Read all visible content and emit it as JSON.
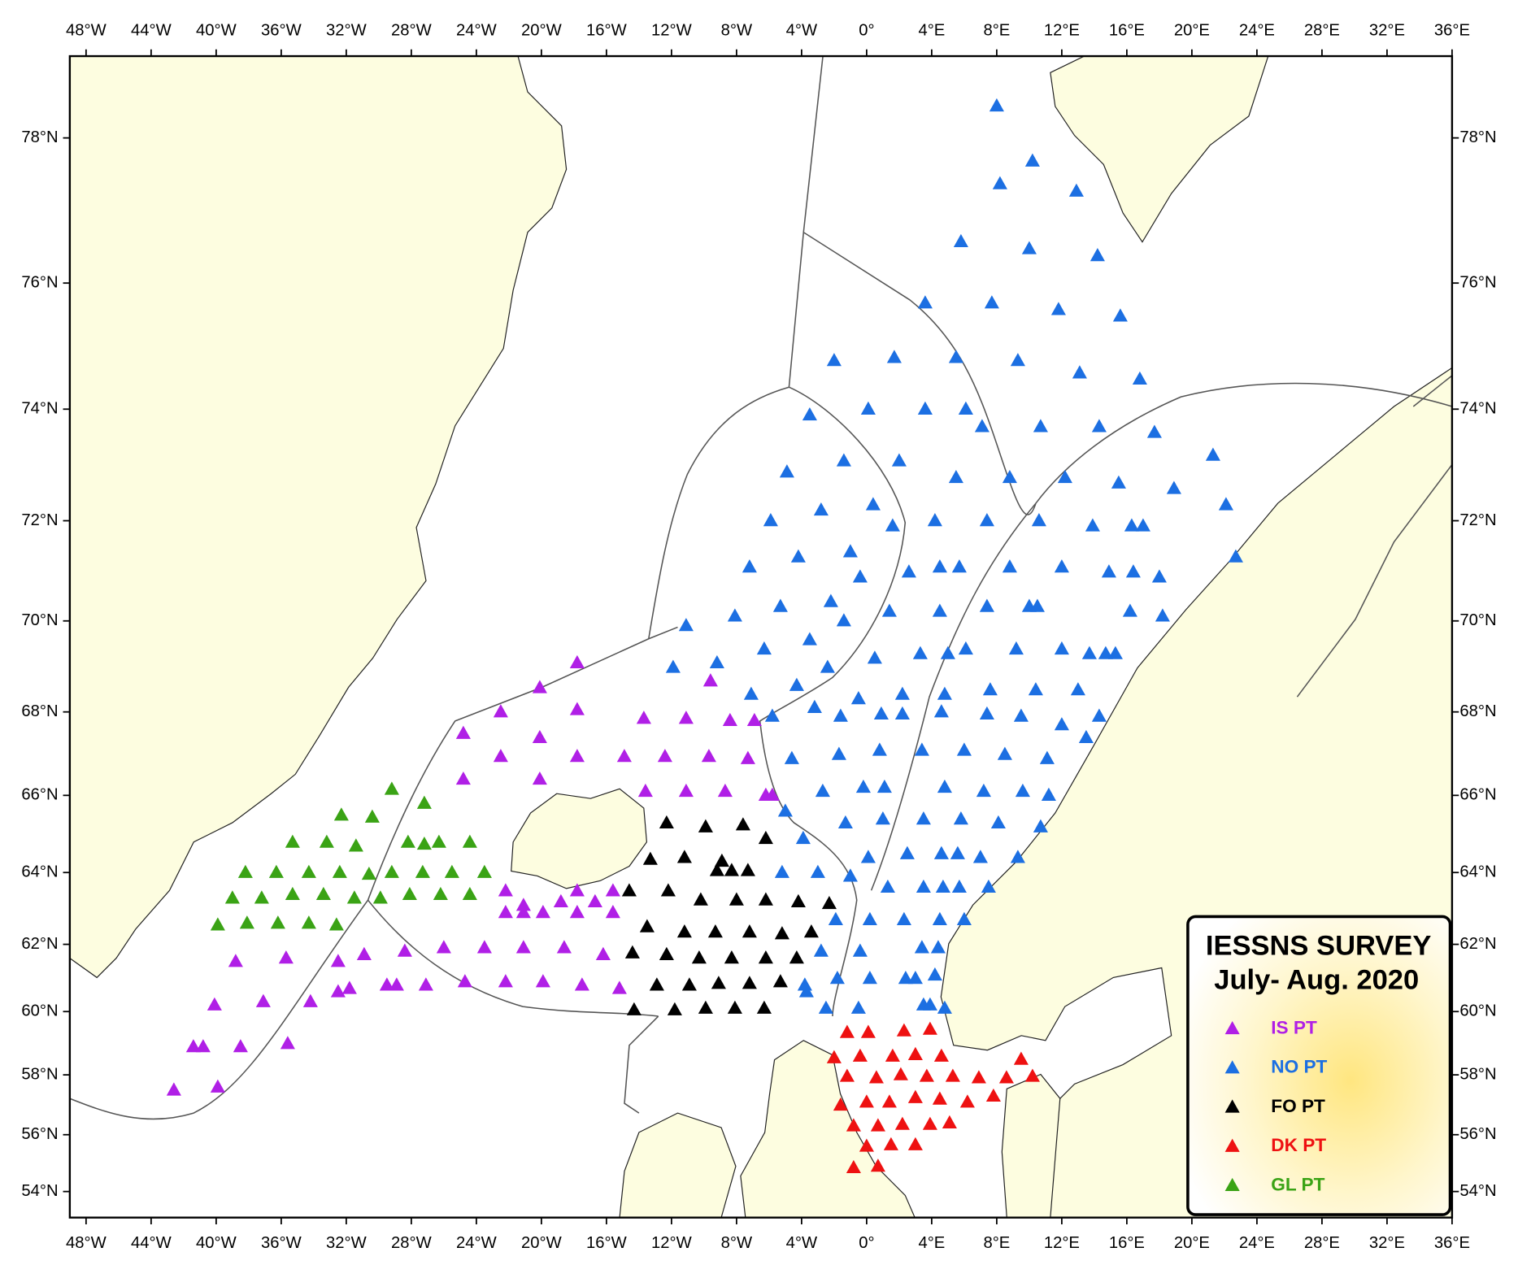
{
  "chart_data": {
    "type": "scatter",
    "projection": "mercator",
    "title": "IESSNS SURVEY",
    "subtitle": "July- Aug. 2020",
    "xlim": [
      -49,
      36
    ],
    "ylim": [
      53.05,
      79.0
    ],
    "xticks": [
      {
        "value": -48,
        "label": "48°W"
      },
      {
        "value": -44,
        "label": "44°W"
      },
      {
        "value": -40,
        "label": "40°W"
      },
      {
        "value": -36,
        "label": "36°W"
      },
      {
        "value": -32,
        "label": "32°W"
      },
      {
        "value": -28,
        "label": "28°W"
      },
      {
        "value": -24,
        "label": "24°W"
      },
      {
        "value": -20,
        "label": "20°W"
      },
      {
        "value": -16,
        "label": "16°W"
      },
      {
        "value": -12,
        "label": "12°W"
      },
      {
        "value": -8,
        "label": "8°W"
      },
      {
        "value": -4,
        "label": "4°W"
      },
      {
        "value": 0,
        "label": "0°"
      },
      {
        "value": 4,
        "label": "4°E"
      },
      {
        "value": 8,
        "label": "8°E"
      },
      {
        "value": 12,
        "label": "12°E"
      },
      {
        "value": 16,
        "label": "16°E"
      },
      {
        "value": 20,
        "label": "20°E"
      },
      {
        "value": 24,
        "label": "24°E"
      },
      {
        "value": 28,
        "label": "28°E"
      },
      {
        "value": 32,
        "label": "32°E"
      },
      {
        "value": 36,
        "label": "36°E"
      }
    ],
    "yticks": [
      {
        "value": 54,
        "label": "54°N"
      },
      {
        "value": 56,
        "label": "56°N"
      },
      {
        "value": 58,
        "label": "58°N"
      },
      {
        "value": 60,
        "label": "60°N"
      },
      {
        "value": 62,
        "label": "62°N"
      },
      {
        "value": 64,
        "label": "64°N"
      },
      {
        "value": 66,
        "label": "66°N"
      },
      {
        "value": 68,
        "label": "68°N"
      },
      {
        "value": 70,
        "label": "70°N"
      },
      {
        "value": 72,
        "label": "72°N"
      },
      {
        "value": 74,
        "label": "74°N"
      },
      {
        "value": 76,
        "label": "76°N"
      },
      {
        "value": 78,
        "label": "78°N"
      }
    ],
    "legend": "lower right",
    "series": [
      {
        "name": "IS PT",
        "color": "#b01fe6",
        "x": [
          -42.6,
          -39.9,
          -41.4,
          -40.8,
          -38.5,
          -35.6,
          -40.1,
          -37.1,
          -34.2,
          -32.5,
          -31.8,
          -29.5,
          -28.9,
          -27.1,
          -24.7,
          -22.2,
          -19.9,
          -17.5,
          -15.2,
          -38.8,
          -35.7,
          -32.5,
          -30.9,
          -28.4,
          -26.0,
          -23.5,
          -21.1,
          -18.6,
          -16.2,
          -22.2,
          -22.2,
          -21.1,
          -19.9,
          -21.1,
          -18.8,
          -17.8,
          -17.8,
          -16.7,
          -15.6,
          -15.6,
          -24.8,
          -24.8,
          -22.5,
          -22.5,
          -20.1,
          -20.1,
          -20.1,
          -17.8,
          -17.8,
          -17.8,
          -14.9,
          -13.7,
          -13.6,
          -12.4,
          -11.1,
          -11.1,
          -9.7,
          -9.6,
          -8.7,
          -8.4,
          -7.3,
          -6.9,
          -6.2,
          -5.8
        ],
        "values": [
          57.5,
          57.6,
          58.9,
          58.9,
          58.9,
          59.0,
          60.2,
          60.3,
          60.3,
          60.6,
          60.7,
          60.8,
          60.8,
          60.8,
          60.9,
          60.9,
          60.9,
          60.8,
          60.7,
          61.5,
          61.6,
          61.5,
          61.7,
          61.8,
          61.9,
          61.9,
          61.9,
          61.9,
          61.7,
          63.5,
          62.9,
          63.1,
          62.9,
          62.9,
          63.2,
          63.5,
          62.9,
          63.2,
          62.9,
          63.5,
          66.4,
          67.5,
          66.95,
          68.0,
          66.4,
          67.4,
          68.55,
          66.95,
          68.05,
          69.1,
          66.95,
          67.85,
          66.1,
          66.95,
          67.85,
          66.1,
          66.95,
          68.7,
          66.1,
          67.8,
          66.9,
          67.8,
          66.0,
          66.0
        ]
      },
      {
        "name": "NO PT",
        "color": "#1c6fe2",
        "x": [
          8.0,
          10.2,
          8.2,
          12.9,
          5.8,
          10.0,
          14.2,
          3.6,
          7.7,
          11.8,
          15.6,
          -2.0,
          1.7,
          5.5,
          9.3,
          13.1,
          16.8,
          -3.5,
          0.1,
          3.6,
          6.1,
          7.1,
          10.7,
          14.3,
          17.7,
          21.3,
          -4.9,
          -1.4,
          2.0,
          5.5,
          8.8,
          12.2,
          15.5,
          18.9,
          -5.9,
          -2.8,
          0.4,
          1.6,
          4.2,
          7.4,
          10.6,
          13.9,
          16.3,
          17.0,
          22.1,
          22.7,
          -7.2,
          -4.2,
          -1.0,
          2.6,
          -0.4,
          4.5,
          5.7,
          8.8,
          12.0,
          14.9,
          16.4,
          18.0,
          -11.1,
          -8.1,
          -5.3,
          -2.2,
          -1.4,
          1.4,
          4.5,
          7.4,
          10.0,
          10.5,
          16.2,
          18.2,
          -11.9,
          -9.2,
          -6.3,
          -3.5,
          -2.4,
          0.5,
          3.3,
          5.0,
          6.1,
          9.2,
          12.0,
          13.7,
          14.7,
          15.3,
          -7.1,
          -4.3,
          -0.5,
          2.2,
          4.8,
          7.6,
          10.4,
          13.0,
          -5.8,
          -3.2,
          -1.6,
          0.9,
          2.2,
          4.6,
          7.4,
          9.5,
          12.0,
          14.3,
          -4.6,
          -1.7,
          0.8,
          3.4,
          6.0,
          8.5,
          11.1,
          13.5,
          -2.7,
          -0.2,
          1.1,
          4.8,
          7.2,
          9.6,
          11.2,
          -5.0,
          -1.3,
          1.0,
          3.5,
          5.8,
          8.1,
          10.7,
          -3.9,
          0.1,
          2.5,
          4.6,
          5.6,
          7.0,
          9.3,
          -5.2,
          -3.0,
          -1.0,
          1.3,
          3.5,
          4.7,
          5.7,
          7.5,
          -1.9,
          0.2,
          2.3,
          4.5,
          6.0,
          -2.8,
          -0.4,
          3.4,
          4.4,
          -3.8,
          -1.8,
          0.2,
          2.4,
          3.0,
          4.2,
          -3.7,
          -2.5,
          -0.5,
          3.5,
          3.9,
          4.8
        ],
        "values": [
          78.4,
          77.7,
          77.4,
          77.3,
          76.6,
          76.5,
          76.4,
          75.7,
          75.7,
          75.6,
          75.5,
          74.8,
          74.85,
          74.85,
          74.8,
          74.6,
          74.5,
          73.9,
          74.0,
          74.0,
          74.0,
          73.7,
          73.7,
          73.7,
          73.6,
          73.2,
          72.9,
          73.1,
          73.1,
          72.8,
          72.8,
          72.8,
          72.7,
          72.6,
          72.0,
          72.2,
          72.3,
          71.9,
          72.0,
          72.0,
          72.0,
          71.9,
          71.9,
          71.9,
          72.3,
          71.3,
          71.1,
          71.3,
          71.4,
          71.0,
          70.9,
          71.1,
          71.1,
          71.1,
          71.1,
          71.0,
          71.0,
          70.9,
          69.9,
          70.1,
          70.3,
          70.4,
          70.0,
          70.2,
          70.2,
          70.3,
          70.3,
          70.3,
          70.2,
          70.1,
          69.0,
          69.1,
          69.4,
          69.6,
          69.0,
          69.2,
          69.3,
          69.3,
          69.4,
          69.4,
          69.4,
          69.3,
          69.3,
          69.3,
          68.4,
          68.6,
          68.3,
          68.4,
          68.4,
          68.5,
          68.5,
          68.5,
          67.9,
          68.1,
          67.9,
          67.95,
          67.95,
          68.0,
          67.95,
          67.9,
          67.7,
          67.9,
          66.9,
          67.0,
          67.1,
          67.1,
          67.1,
          67.0,
          66.9,
          67.4,
          66.1,
          66.2,
          66.2,
          66.2,
          66.1,
          66.1,
          66.0,
          65.6,
          65.3,
          65.4,
          65.4,
          65.4,
          65.3,
          65.2,
          64.9,
          64.4,
          64.5,
          64.5,
          64.5,
          64.4,
          64.4,
          64.0,
          64.0,
          63.9,
          63.6,
          63.6,
          63.6,
          63.6,
          63.6,
          62.7,
          62.7,
          62.7,
          62.7,
          62.7,
          61.8,
          61.8,
          61.9,
          61.9,
          60.8,
          61.0,
          61.0,
          61.0,
          61.0,
          61.1,
          60.6,
          60.1,
          60.1,
          60.2,
          60.2,
          60.1
        ]
      },
      {
        "name": "FO PT",
        "color": "#000000",
        "x": [
          -12.3,
          -9.9,
          -7.6,
          -6.2,
          -13.3,
          -11.2,
          -8.9,
          -9.2,
          -8.3,
          -7.3,
          -14.6,
          -12.2,
          -10.2,
          -8.0,
          -6.2,
          -4.2,
          -2.3,
          -13.5,
          -11.2,
          -9.3,
          -7.2,
          -5.2,
          -3.4,
          -14.4,
          -12.3,
          -10.3,
          -8.3,
          -6.2,
          -4.3,
          -12.9,
          -10.9,
          -9.1,
          -7.2,
          -5.3,
          -14.3,
          -11.8,
          -9.9,
          -8.1,
          -6.3
        ],
        "values": [
          65.3,
          65.2,
          65.25,
          64.9,
          64.35,
          64.4,
          64.3,
          64.05,
          64.05,
          64.05,
          63.5,
          63.5,
          63.25,
          63.25,
          63.25,
          63.2,
          63.15,
          62.5,
          62.35,
          62.35,
          62.35,
          62.3,
          62.35,
          61.75,
          61.7,
          61.6,
          61.6,
          61.6,
          61.6,
          60.8,
          60.8,
          60.85,
          60.85,
          60.9,
          60.05,
          60.05,
          60.1,
          60.1,
          60.1
        ]
      },
      {
        "name": "DK PT",
        "color": "#ee1111",
        "x": [
          -1.2,
          0.1,
          2.3,
          3.9,
          -2.0,
          -0.4,
          1.6,
          3.0,
          4.6,
          -1.2,
          0.6,
          2.1,
          3.7,
          5.3,
          6.9,
          8.6,
          9.5,
          10.2,
          7.8,
          -1.6,
          0.0,
          1.4,
          3.0,
          4.5,
          6.2,
          -0.8,
          0.7,
          2.2,
          3.9,
          5.1,
          0.0,
          1.5,
          3.0,
          -0.8,
          0.7
        ],
        "values": [
          59.35,
          59.35,
          59.4,
          59.45,
          58.55,
          58.6,
          58.6,
          58.65,
          58.6,
          57.95,
          57.9,
          58.0,
          57.95,
          57.95,
          57.9,
          57.9,
          58.5,
          57.95,
          57.3,
          57.0,
          57.1,
          57.1,
          57.25,
          57.2,
          57.1,
          56.3,
          56.3,
          56.35,
          56.35,
          56.4,
          55.6,
          55.65,
          55.65,
          54.85,
          54.9
        ]
      },
      {
        "name": "GL PT",
        "color": "#3aa315",
        "x": [
          -29.2,
          -27.2,
          -32.3,
          -30.4,
          -35.3,
          -33.2,
          -31.4,
          -28.2,
          -27.2,
          -26.3,
          -24.4,
          -38.2,
          -36.3,
          -34.3,
          -32.4,
          -30.6,
          -29.2,
          -27.3,
          -25.5,
          -23.5,
          -39.0,
          -37.2,
          -35.3,
          -33.4,
          -31.5,
          -29.9,
          -28.1,
          -26.2,
          -24.4,
          -39.9,
          -38.1,
          -36.2,
          -34.3,
          -32.6
        ],
        "values": [
          66.15,
          65.8,
          65.5,
          65.45,
          64.8,
          64.8,
          64.7,
          64.8,
          64.75,
          64.8,
          64.8,
          64.0,
          64.0,
          64.0,
          64.0,
          63.95,
          64.0,
          64.0,
          64.0,
          64.0,
          63.3,
          63.3,
          63.4,
          63.4,
          63.3,
          63.3,
          63.4,
          63.4,
          63.4,
          62.55,
          62.6,
          62.6,
          62.6,
          62.55
        ]
      }
    ]
  }
}
